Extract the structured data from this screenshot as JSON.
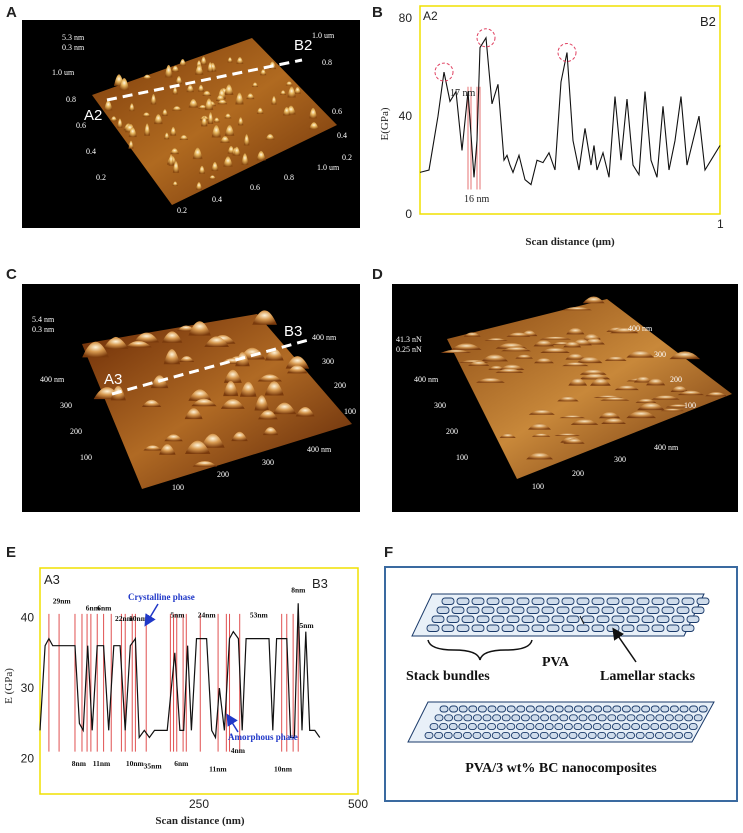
{
  "panels": {
    "A": {
      "letter": "A",
      "scale_labels": [
        "5.3 nm",
        "0.3 nm"
      ],
      "left_axis_labels": [
        "1.0 um",
        "0.8",
        "0.6",
        "0.4",
        "0.2"
      ],
      "bottom_axis_labels": [
        "0.2",
        "0.4",
        "0.6",
        "0.8",
        "1.0 um"
      ],
      "right_axis_labels": [
        "1.0 um",
        "0.8",
        "0.6",
        "0.4",
        "0.2"
      ],
      "line_start": "A2",
      "line_end": "B2"
    },
    "B": {
      "letter": "B",
      "corner_left": "A2",
      "corner_right": "B2",
      "ylabel": "E(GPa)",
      "xlabel": "Scan distance (μm)",
      "yticks": [
        "0",
        "40",
        "80"
      ],
      "xtick_end": "1",
      "annotations": [
        "17 nm",
        "16 nm"
      ]
    },
    "C": {
      "letter": "C",
      "scale_labels": [
        "5.4 nm",
        "0.3 nm"
      ],
      "left_axis_labels": [
        "400 nm",
        "300",
        "200",
        "100"
      ],
      "bottom_axis_labels": [
        "100",
        "200",
        "300",
        "400 nm"
      ],
      "right_axis_labels": [
        "400 nm",
        "300",
        "200",
        "100"
      ],
      "line_start": "A3",
      "line_end": "B3"
    },
    "D": {
      "letter": "D",
      "scale_labels": [
        "41.3 nN",
        "0.25 nN"
      ],
      "left_axis_labels": [
        "400 nm",
        "300",
        "200",
        "100"
      ],
      "bottom_axis_labels": [
        "100",
        "200",
        "300",
        "400 nm"
      ],
      "right_axis_labels": [
        "400 nm",
        "300",
        "200",
        "100"
      ]
    },
    "E": {
      "letter": "E",
      "corner_left": "A3",
      "corner_right": "B3",
      "ylabel": "E (GPa)",
      "xlabel": "Scan distance (nm)",
      "yticks": [
        "20",
        "30",
        "40"
      ],
      "xticks": [
        "250",
        "500"
      ],
      "top_widths": [
        "29nm",
        "6nm",
        "6nm",
        "22nm",
        "10nm",
        "5nm",
        "24nm",
        "53nm",
        "8nm",
        "5nm"
      ],
      "bottom_widths": [
        "8nm",
        "11nm",
        "10nm",
        "35nm",
        "6nm",
        "11nm",
        "4nm",
        "10nm"
      ],
      "crystalline_label": "Crystalline phase",
      "amorphous_label": "Amorphous phase"
    },
    "F": {
      "letter": "F",
      "stack_bundles": "Stack bundles",
      "pva": "PVA",
      "lamellar": "Lamellar stacks",
      "nanocomposite": "PVA/3 wt% BC nanocomposites"
    }
  },
  "chart_data": [
    {
      "type": "line",
      "panel": "B",
      "xlabel": "Scan distance (μm)",
      "ylabel": "E(GPa)",
      "xlim": [
        0,
        1
      ],
      "ylim": [
        0,
        85
      ],
      "x": [
        0.0,
        0.03,
        0.06,
        0.08,
        0.1,
        0.12,
        0.14,
        0.16,
        0.18,
        0.19,
        0.2,
        0.22,
        0.24,
        0.26,
        0.28,
        0.29,
        0.3,
        0.31,
        0.33,
        0.35,
        0.37,
        0.39,
        0.41,
        0.43,
        0.45,
        0.47,
        0.49,
        0.51,
        0.53,
        0.55,
        0.57,
        0.58,
        0.59,
        0.61,
        0.63,
        0.65,
        0.67,
        0.69,
        0.71,
        0.73,
        0.75,
        0.77,
        0.79,
        0.81,
        0.83,
        0.85,
        0.87,
        0.89,
        0.91,
        0.93,
        0.95,
        0.97,
        1.0
      ],
      "y": [
        17,
        18,
        40,
        58,
        46,
        50,
        26,
        50,
        15,
        30,
        68,
        72,
        45,
        53,
        22,
        24,
        20,
        17,
        24,
        14,
        12,
        22,
        21,
        25,
        18,
        54,
        66,
        30,
        18,
        35,
        20,
        28,
        18,
        25,
        15,
        48,
        22,
        47,
        20,
        16,
        50,
        22,
        15,
        44,
        18,
        30,
        48,
        20,
        30,
        40,
        18,
        22,
        28
      ],
      "highlight_x": [
        0.06,
        0.21,
        0.49
      ],
      "width_markers": [
        {
          "label": "17 nm",
          "x1": 0.16,
          "x2": 0.19
        },
        {
          "label": "16 nm",
          "x1": 0.17,
          "x2": 0.2
        }
      ]
    },
    {
      "type": "line",
      "panel": "E",
      "xlabel": "Scan distance (nm)",
      "ylabel": "E (GPa)",
      "xlim": [
        0,
        500
      ],
      "ylim": [
        15,
        47
      ],
      "x": [
        0,
        8,
        14,
        20,
        55,
        62,
        68,
        75,
        82,
        90,
        100,
        108,
        116,
        126,
        134,
        142,
        150,
        156,
        164,
        172,
        180,
        200,
        212,
        220,
        226,
        232,
        238,
        246,
        252,
        262,
        270,
        276,
        282,
        290,
        298,
        304,
        312,
        318,
        324,
        332,
        346,
        360,
        366,
        372,
        380,
        388,
        394,
        400,
        406,
        412,
        418,
        424,
        432,
        440
      ],
      "y": [
        24,
        36,
        37,
        36,
        36,
        25,
        24,
        36,
        24,
        36,
        36,
        24,
        36,
        36,
        24,
        36,
        37,
        23,
        24,
        23,
        24,
        24,
        35,
        24,
        24,
        36,
        24,
        37,
        37,
        37,
        24,
        23,
        30,
        24,
        37,
        38,
        37,
        24,
        37,
        37,
        37,
        37,
        24,
        37,
        37,
        37,
        23,
        23,
        42,
        24,
        38,
        24,
        24,
        23
      ],
      "vlines": [
        14,
        30,
        55,
        66,
        74,
        80,
        90,
        100,
        112,
        128,
        134,
        145,
        150,
        167,
        205,
        210,
        215,
        225,
        230,
        252,
        280,
        293,
        298,
        314,
        380,
        388,
        398,
        406
      ],
      "points_of_interest": {
        "crystalline": [
          150,
          37
        ],
        "amorphous": [
          290,
          24
        ]
      }
    }
  ]
}
